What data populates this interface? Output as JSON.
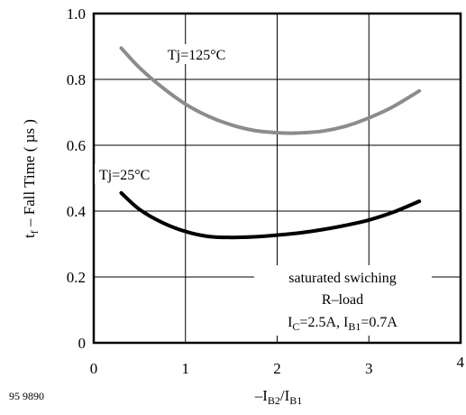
{
  "chart_data": {
    "type": "line",
    "ylabel_main": "t",
    "ylabel_sub": "f",
    "ylabel_rest": " – Fall Time ( µs )",
    "xlabel_main": "–I",
    "xlabel_sub1": "B2",
    "xlabel_mid": "/I",
    "xlabel_sub2": "B1",
    "xlim": [
      0,
      4
    ],
    "ylim": [
      0,
      1.0
    ],
    "x_ticks": [
      "0",
      "1",
      "2",
      "3",
      "4"
    ],
    "y_ticks": [
      "0",
      "0.2",
      "0.4",
      "0.6",
      "0.8",
      "1.0"
    ],
    "grid": true,
    "series": [
      {
        "name": "Tj=125°C",
        "color": "#8c8c8c",
        "x": [
          0.3,
          0.5,
          0.75,
          1.0,
          1.25,
          1.5,
          1.75,
          2.0,
          2.2,
          2.5,
          2.75,
          3.0,
          3.25,
          3.55
        ],
        "y": [
          0.895,
          0.835,
          0.775,
          0.725,
          0.688,
          0.662,
          0.645,
          0.638,
          0.637,
          0.643,
          0.658,
          0.683,
          0.715,
          0.765
        ]
      },
      {
        "name": "Tj=25°C",
        "color": "#000000",
        "x": [
          0.3,
          0.5,
          0.75,
          1.0,
          1.25,
          1.5,
          1.75,
          2.0,
          2.25,
          2.5,
          2.75,
          3.0,
          3.25,
          3.55
        ],
        "y": [
          0.455,
          0.405,
          0.365,
          0.338,
          0.323,
          0.32,
          0.322,
          0.327,
          0.334,
          0.344,
          0.357,
          0.373,
          0.395,
          0.43
        ]
      }
    ],
    "annotations": {
      "line1": "saturated swiching",
      "line2": "R–load",
      "ic_main": "I",
      "ic_sub": "C",
      "ic_val": "=2.5A, I",
      "ib_sub": "B1",
      "ib_val": "=0.7A"
    },
    "footnote": "95 9890"
  }
}
